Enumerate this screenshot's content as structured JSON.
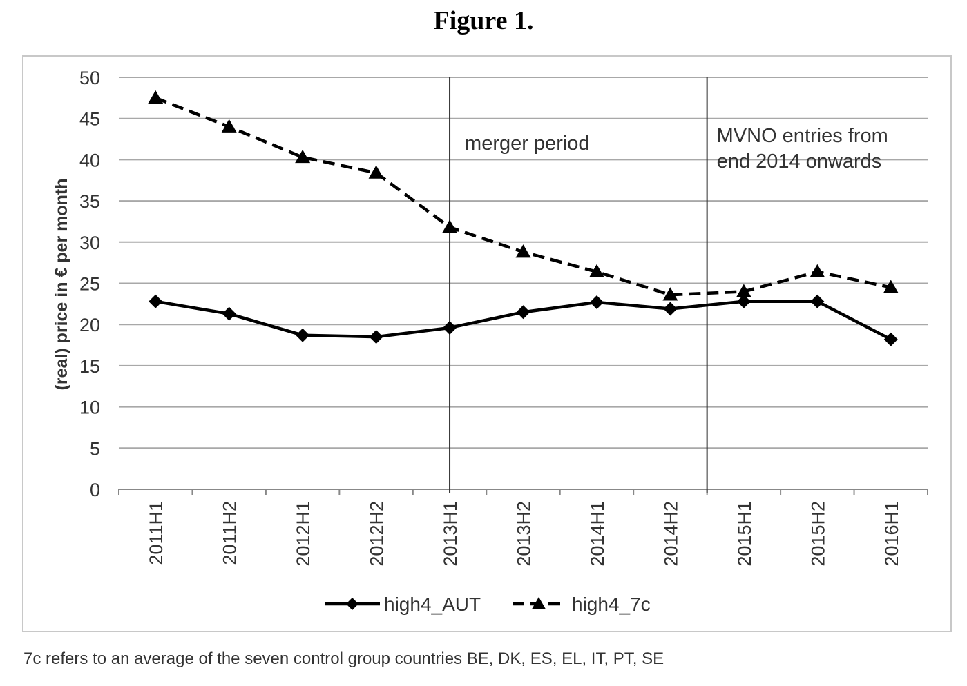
{
  "figure_title": "Figure 1.",
  "footnote": "7c refers to an average of the seven control group countries BE, DK, ES, EL, IT, PT, SE",
  "chart_data": {
    "type": "line",
    "title": "",
    "xlabel": "",
    "ylabel": "(real) price in € per month",
    "ylim": [
      0,
      50
    ],
    "yticks": [
      0,
      5,
      10,
      15,
      20,
      25,
      30,
      35,
      40,
      45,
      50
    ],
    "grid": true,
    "legend_position": "bottom",
    "categories": [
      "2011H1",
      "2011H2",
      "2012H1",
      "2012H2",
      "2013H1",
      "2013H2",
      "2014H1",
      "2014H2",
      "2015H1",
      "2015H2",
      "2016H1"
    ],
    "series": [
      {
        "name": "high4_AUT",
        "style": "solid",
        "marker": "diamond",
        "color": "#000000",
        "values": [
          22.8,
          21.3,
          18.7,
          18.5,
          19.6,
          21.5,
          22.7,
          21.9,
          22.8,
          22.8,
          18.2
        ]
      },
      {
        "name": "high4_7c",
        "style": "dashed",
        "marker": "triangle",
        "color": "#000000",
        "values": [
          47.5,
          44.0,
          40.3,
          38.4,
          31.8,
          28.8,
          26.4,
          23.6,
          24.0,
          26.4,
          24.5
        ]
      }
    ],
    "annotations": [
      {
        "text": "merger period",
        "at_category": "2013H1",
        "vline": true
      },
      {
        "text_lines": [
          "MVNO entries from",
          "end 2014 onwards"
        ],
        "at_between": [
          "2014H2",
          "2015H1"
        ],
        "vline": true
      }
    ]
  }
}
